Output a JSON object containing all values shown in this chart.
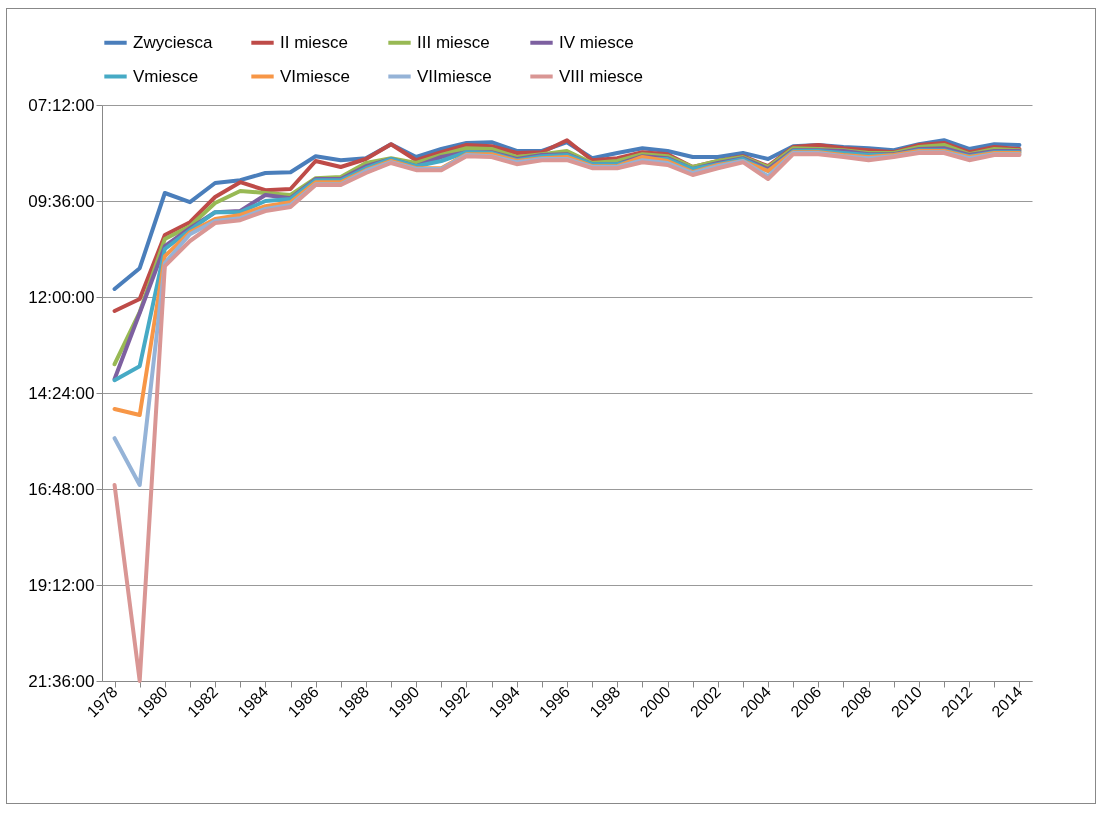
{
  "chart_data": {
    "type": "line",
    "categories": [
      "1978",
      null,
      "1980",
      null,
      "1982",
      null,
      "1984",
      null,
      "1986",
      null,
      "1988",
      null,
      "1990",
      null,
      "1992",
      null,
      "1994",
      null,
      "1996",
      null,
      "1998",
      null,
      "2000",
      null,
      "2002",
      null,
      "2004",
      null,
      "2006",
      null,
      "2008",
      null,
      "2010",
      null,
      "2012",
      null,
      "2014"
    ],
    "ylim": [
      21.6,
      7.2
    ],
    "yticks": [
      {
        "value": 7.2,
        "label": "07:12:00"
      },
      {
        "value": 9.6,
        "label": "09:36:00"
      },
      {
        "value": 12,
        "label": "12:00:00"
      },
      {
        "value": 14.4,
        "label": "14:24:00"
      },
      {
        "value": 16.8,
        "label": "16:48:00"
      },
      {
        "value": 19.2,
        "label": "19:12:00"
      },
      {
        "value": 21.6,
        "label": "21:36:00"
      }
    ],
    "grid": "y",
    "legend": "top",
    "series": [
      {
        "name": "Zwyciesca",
        "color": "#4a7ebb",
        "values": [
          11.8,
          11.28,
          9.4,
          9.63,
          9.15,
          9.08,
          8.9,
          8.88,
          8.48,
          8.58,
          8.53,
          8.18,
          8.5,
          8.3,
          8.15,
          8.13,
          8.35,
          8.35,
          8.13,
          8.53,
          8.4,
          8.28,
          8.35,
          8.5,
          8.5,
          8.4,
          8.55,
          8.23,
          8.2,
          8.25,
          8.28,
          8.33,
          8.18,
          8.08,
          8.3,
          8.18,
          8.2
        ]
      },
      {
        "name": "II miesce",
        "color": "#be4b48",
        "values": [
          12.35,
          12.05,
          10.45,
          10.13,
          9.5,
          9.13,
          9.33,
          9.3,
          8.6,
          8.75,
          8.55,
          8.18,
          8.58,
          8.38,
          8.2,
          8.23,
          8.4,
          8.38,
          8.08,
          8.58,
          8.53,
          8.38,
          8.43,
          8.75,
          8.6,
          8.48,
          8.73,
          8.25,
          8.2,
          8.28,
          8.33,
          8.38,
          8.2,
          8.15,
          8.38,
          8.25,
          8.3
        ]
      },
      {
        "name": "III miesce",
        "color": "#98b954",
        "values": [
          13.68,
          12.38,
          10.55,
          10.23,
          9.65,
          9.35,
          9.4,
          9.45,
          9.03,
          9.0,
          8.65,
          8.53,
          8.65,
          8.45,
          8.28,
          8.3,
          8.5,
          8.43,
          8.35,
          8.65,
          8.6,
          8.43,
          8.48,
          8.75,
          8.6,
          8.5,
          8.75,
          8.28,
          8.3,
          8.33,
          8.4,
          8.4,
          8.25,
          8.2,
          8.43,
          8.3,
          8.33
        ]
      },
      {
        "name": "IV miesce",
        "color": "#7d60a0",
        "values": [
          14.05,
          12.4,
          10.73,
          10.28,
          9.88,
          9.85,
          9.45,
          9.53,
          9.05,
          9.05,
          8.73,
          8.55,
          8.73,
          8.5,
          8.38,
          8.38,
          8.55,
          8.45,
          8.43,
          8.68,
          8.68,
          8.48,
          8.53,
          8.8,
          8.65,
          8.53,
          8.8,
          8.33,
          8.33,
          8.35,
          8.43,
          8.43,
          8.3,
          8.28,
          8.45,
          8.35,
          8.35
        ]
      },
      {
        "name": "Vmiesce",
        "color": "#46aac5",
        "values": [
          14.08,
          13.73,
          10.8,
          10.33,
          9.88,
          9.88,
          9.6,
          9.55,
          9.08,
          9.08,
          8.78,
          8.55,
          8.73,
          8.6,
          8.38,
          8.4,
          8.58,
          8.48,
          8.45,
          8.68,
          8.68,
          8.55,
          8.55,
          8.8,
          8.68,
          8.55,
          8.85,
          8.35,
          8.35,
          8.4,
          8.45,
          8.45,
          8.33,
          8.33,
          8.48,
          8.38,
          8.38
        ]
      },
      {
        "name": "VImiesce",
        "color": "#f79646",
        "values": [
          14.8,
          14.95,
          10.98,
          10.38,
          10.05,
          9.95,
          9.73,
          9.63,
          9.13,
          9.13,
          8.83,
          8.6,
          8.78,
          8.78,
          8.43,
          8.43,
          8.6,
          8.53,
          8.5,
          8.73,
          8.73,
          8.5,
          8.6,
          8.88,
          8.7,
          8.6,
          8.85,
          8.38,
          8.38,
          8.45,
          8.5,
          8.45,
          8.35,
          8.35,
          8.5,
          8.4,
          8.4
        ]
      },
      {
        "name": "VIImiesce",
        "color": "#95b3d7",
        "values": [
          15.53,
          16.7,
          11.15,
          10.43,
          10.1,
          10.03,
          9.8,
          9.7,
          9.18,
          9.18,
          8.85,
          8.63,
          8.8,
          8.8,
          8.45,
          8.48,
          8.63,
          8.55,
          8.55,
          8.75,
          8.75,
          8.58,
          8.65,
          8.9,
          8.73,
          8.6,
          8.98,
          8.4,
          8.4,
          8.48,
          8.53,
          8.48,
          8.38,
          8.38,
          8.53,
          8.43,
          8.43
        ]
      },
      {
        "name": "VIII miesce",
        "color": "#d99694",
        "values": [
          16.7,
          21.6,
          11.23,
          10.6,
          10.15,
          10.08,
          9.85,
          9.75,
          9.2,
          9.2,
          8.9,
          8.65,
          8.83,
          8.83,
          8.48,
          8.5,
          8.68,
          8.58,
          8.58,
          8.78,
          8.78,
          8.63,
          8.7,
          8.95,
          8.78,
          8.63,
          9.05,
          8.43,
          8.43,
          8.5,
          8.58,
          8.5,
          8.4,
          8.4,
          8.58,
          8.45,
          8.45
        ]
      }
    ]
  }
}
